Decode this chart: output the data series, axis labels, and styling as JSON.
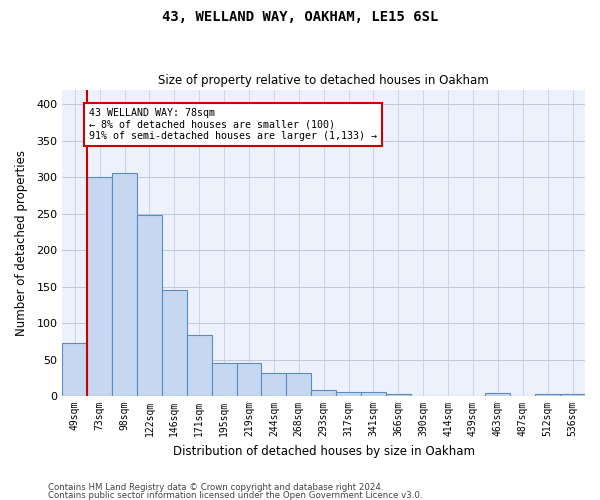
{
  "title": "43, WELLAND WAY, OAKHAM, LE15 6SL",
  "subtitle": "Size of property relative to detached houses in Oakham",
  "xlabel": "Distribution of detached houses by size in Oakham",
  "ylabel": "Number of detached properties",
  "footer1": "Contains HM Land Registry data © Crown copyright and database right 2024.",
  "footer2": "Contains public sector information licensed under the Open Government Licence v3.0.",
  "bin_labels": [
    "49sqm",
    "73sqm",
    "98sqm",
    "122sqm",
    "146sqm",
    "171sqm",
    "195sqm",
    "219sqm",
    "244sqm",
    "268sqm",
    "293sqm",
    "317sqm",
    "341sqm",
    "366sqm",
    "390sqm",
    "414sqm",
    "439sqm",
    "463sqm",
    "487sqm",
    "512sqm",
    "536sqm"
  ],
  "bar_values": [
    73,
    300,
    305,
    248,
    145,
    83,
    45,
    45,
    32,
    32,
    8,
    6,
    6,
    3,
    0,
    0,
    0,
    4,
    0,
    3,
    3
  ],
  "bar_color": "#c5d8f0",
  "bar_edge_color": "#5b8ac5",
  "property_label": "43 WELLAND WAY: 78sqm",
  "annotation_line1": "← 8% of detached houses are smaller (100)",
  "annotation_line2": "91% of semi-detached houses are larger (1,133) →",
  "vline_color": "#cc0000",
  "annotation_box_color": "#cc0000",
  "ylim": [
    0,
    420
  ],
  "yticks": [
    0,
    50,
    100,
    150,
    200,
    250,
    300,
    350,
    400
  ],
  "grid_color": "#c0c8dc",
  "bg_color": "#edf1fb"
}
